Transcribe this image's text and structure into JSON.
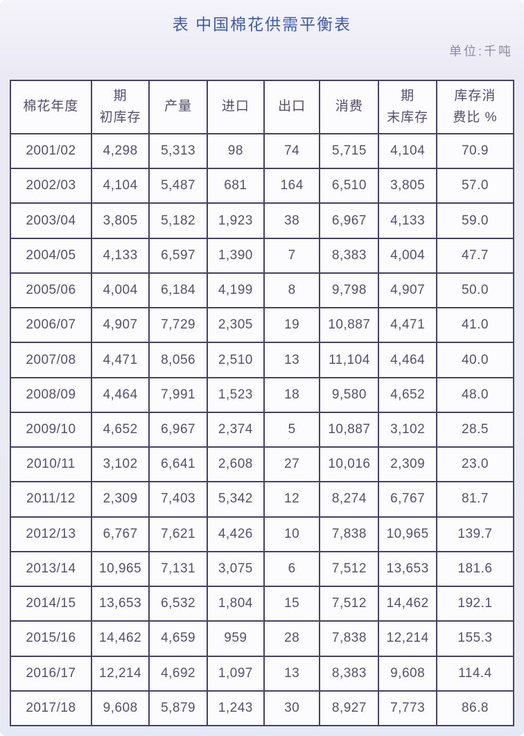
{
  "page": {
    "title": "表 中国棉花供需平衡表",
    "unit_label": "单位:千吨"
  },
  "colors": {
    "title_text": "#3c5ca9",
    "unit_text": "#8f8aa4",
    "table_border": "#474066",
    "cell_text": "#56506c",
    "page_background": "#eae9f3",
    "cell_background": "#fcfbfe"
  },
  "chart_data": {
    "type": "table",
    "title": "表 中国棉花供需平衡表",
    "unit": "千吨",
    "unit_label": "单位:千吨",
    "columns": [
      "棉花年度",
      "期初库存",
      "产量",
      "进口",
      "出口",
      "消费",
      "期末库存",
      "库存消费比 %"
    ],
    "header_display_lines": [
      [
        "棉花年度"
      ],
      [
        "期",
        "初库存"
      ],
      [
        "产量"
      ],
      [
        "进口"
      ],
      [
        "出口"
      ],
      [
        "消费"
      ],
      [
        "期",
        "末库存"
      ],
      [
        "库存消",
        "费比 %"
      ]
    ],
    "rows": [
      [
        "2001/02",
        "4,298",
        "5,313",
        "98",
        "74",
        "5,715",
        "4,104",
        "70.9"
      ],
      [
        "2002/03",
        "4,104",
        "5,487",
        "681",
        "164",
        "6,510",
        "3,805",
        "57.0"
      ],
      [
        "2003/04",
        "3,805",
        "5,182",
        "1,923",
        "38",
        "6,967",
        "4,133",
        "59.0"
      ],
      [
        "2004/05",
        "4,133",
        "6,597",
        "1,390",
        "7",
        "8,383",
        "4,004",
        "47.7"
      ],
      [
        "2005/06",
        "4,004",
        "6,184",
        "4,199",
        "8",
        "9,798",
        "4,907",
        "50.0"
      ],
      [
        "2006/07",
        "4,907",
        "7,729",
        "2,305",
        "19",
        "10,887",
        "4,471",
        "41.0"
      ],
      [
        "2007/08",
        "4,471",
        "8,056",
        "2,510",
        "13",
        "11,104",
        "4,464",
        "40.0"
      ],
      [
        "2008/09",
        "4,464",
        "7,991",
        "1,523",
        "18",
        "9,580",
        "4,652",
        "48.0"
      ],
      [
        "2009/10",
        "4,652",
        "6,967",
        "2,374",
        "5",
        "10,887",
        "3,102",
        "28.5"
      ],
      [
        "2010/11",
        "3,102",
        "6,641",
        "2,608",
        "27",
        "10,016",
        "2,309",
        "23.0"
      ],
      [
        "2011/12",
        "2,309",
        "7,403",
        "5,342",
        "12",
        "8,274",
        "6,767",
        "81.7"
      ],
      [
        "2012/13",
        "6,767",
        "7,621",
        "4,426",
        "10",
        "7,838",
        "10,965",
        "139.7"
      ],
      [
        "2013/14",
        "10,965",
        "7,131",
        "3,075",
        "6",
        "7,512",
        "13,653",
        "181.6"
      ],
      [
        "2014/15",
        "13,653",
        "6,532",
        "1,804",
        "15",
        "7,512",
        "14,462",
        "192.1"
      ],
      [
        "2015/16",
        "14,462",
        "4,659",
        "959",
        "28",
        "7,838",
        "12,214",
        "155.3"
      ],
      [
        "2016/17",
        "12,214",
        "4,692",
        "1,097",
        "13",
        "8,383",
        "9,608",
        "114.4"
      ],
      [
        "2017/18",
        "9,608",
        "5,879",
        "1,243",
        "30",
        "8,927",
        "7,773",
        "86.8"
      ]
    ]
  }
}
